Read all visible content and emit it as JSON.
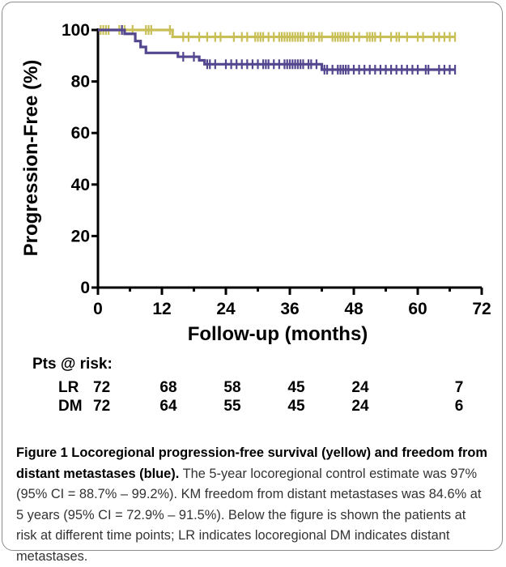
{
  "chart_data": {
    "type": "line",
    "subtype": "kaplan-meier step",
    "ylabel": "Progression-Free (%)",
    "xlabel": "Follow-up (months)",
    "xlim": [
      0,
      72
    ],
    "ylim": [
      0,
      100
    ],
    "xticks": [
      0,
      12,
      24,
      36,
      48,
      60,
      72
    ],
    "yticks": [
      0,
      20,
      40,
      60,
      80,
      100
    ],
    "grid": false,
    "series": [
      {
        "label": "LR",
        "color": "#c9bf57",
        "steps": [
          [
            0,
            100
          ],
          [
            14,
            100
          ],
          [
            14,
            97.3
          ],
          [
            67,
            97.3
          ]
        ],
        "censor_times": [
          0.5,
          1,
          1.5,
          2,
          4,
          4.5,
          5,
          6.5,
          9,
          9.5,
          10,
          13.5,
          16,
          17,
          19,
          20.5,
          22,
          23,
          25.5,
          27,
          28,
          29.5,
          30,
          30.5,
          31,
          32,
          33,
          34,
          34.5,
          35,
          35.5,
          36,
          36.5,
          37,
          37.5,
          38,
          38.5,
          39.5,
          40,
          40.5,
          41.5,
          42,
          44,
          44.5,
          45,
          45.5,
          46,
          46.5,
          47,
          48,
          49,
          50.5,
          51,
          51.5,
          52,
          53,
          55,
          56,
          56.5,
          58,
          60,
          61,
          63,
          64,
          65,
          66,
          67
        ]
      },
      {
        "label": "DM",
        "color": "#54478f",
        "steps": [
          [
            0,
            100
          ],
          [
            5,
            100
          ],
          [
            5,
            98.5
          ],
          [
            7,
            98.5
          ],
          [
            7,
            95.7
          ],
          [
            8,
            95.7
          ],
          [
            8,
            93.4
          ],
          [
            9,
            93.4
          ],
          [
            9,
            91.1
          ],
          [
            15,
            91.1
          ],
          [
            15,
            89.6
          ],
          [
            19,
            89.6
          ],
          [
            19,
            88.2
          ],
          [
            20,
            88.2
          ],
          [
            20,
            86.7
          ],
          [
            42,
            86.7
          ],
          [
            42,
            84.6
          ],
          [
            67,
            84.6
          ]
        ],
        "censor_times": [
          4.5,
          16,
          18,
          20.5,
          21,
          22,
          24,
          25,
          26,
          27,
          28,
          29,
          30,
          31,
          31.5,
          32,
          33,
          34,
          35,
          35.5,
          36,
          36.5,
          37,
          37.5,
          38,
          38.5,
          39.5,
          40,
          41,
          42.5,
          43,
          44,
          45,
          45.5,
          46,
          46.5,
          47,
          48,
          49,
          50,
          51,
          52,
          53,
          54,
          55,
          56,
          57,
          58,
          59,
          60,
          61.5,
          62,
          64,
          65,
          66,
          67
        ]
      }
    ],
    "at_risk": {
      "header": "Pts @ risk:",
      "rows": [
        {
          "label": "LR",
          "values": [
            72,
            68,
            58,
            45,
            24,
            7
          ]
        },
        {
          "label": "DM",
          "values": [
            72,
            64,
            55,
            45,
            24,
            6
          ]
        }
      ],
      "times": [
        0,
        12,
        24,
        36,
        48,
        60
      ]
    }
  },
  "caption": {
    "title": "Figure 1 Locoregional progression-free survival (yellow) and freedom from distant metastases (blue).",
    "body": " The 5-year locoregional control estimate was 97% (95% CI = 88.7% – 99.2%). KM freedom from distant metastases was 84.6% at 5 years (95% CI = 72.9% – 91.5%). Below the figure is shown the patients at risk at different time points; LR indicates locoregional DM indicates distant metastases."
  }
}
